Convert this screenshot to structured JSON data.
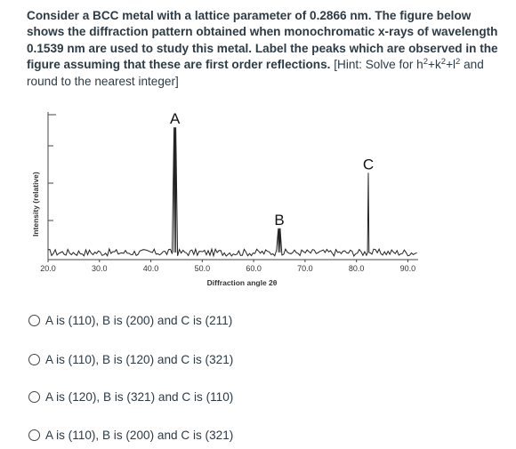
{
  "question": {
    "bold_text": "Consider a BCC metal with a lattice parameter of 0.2866 nm.  The figure below shows the diffraction pattern obtained when monochromatic x-rays of wavelength 0.1539 nm are used to study this metal.  Label the peaks which are observed in the figure assuming that these are first order reflections.",
    "hint_prefix": " [Hint:  Solve for h",
    "sup1": "2",
    "hint_k": "+k",
    "sup2": "2",
    "hint_l": "+l",
    "sup3": "2",
    "hint_suffix": " and round to the nearest integer]"
  },
  "chart_data": {
    "type": "line",
    "xlabel": "Diffraction angle 2θ",
    "ylabel": "Intensity (relative)",
    "x_ticks": [
      20,
      30,
      40,
      50,
      60,
      70,
      80,
      90
    ],
    "x_tick_labels": [
      "20.0",
      "30.0",
      "40.0",
      "50.0",
      "60.0",
      "70.0",
      "80.0",
      "90.0"
    ],
    "xlim": [
      20,
      92
    ],
    "ylim": [
      0,
      1
    ],
    "grid": false,
    "peaks": [
      {
        "label": "A",
        "x": 44.7,
        "y": 0.93
      },
      {
        "label": "B",
        "x": 65.0,
        "y": 0.22
      },
      {
        "label": "C",
        "x": 82.3,
        "y": 0.61
      }
    ],
    "baseline_level": 0.05,
    "noise_amplitude": 0.025,
    "noise_step": 0.35,
    "noise_seed": 17
  },
  "options": [
    {
      "label": "A is (110), B is (200) and C is (211)"
    },
    {
      "label": "A is (110), B is (120) and C is (321)"
    },
    {
      "label": "A is (120), B is (321) and C is (110)"
    },
    {
      "label": "A is (110), B is (200) and C is (321)"
    }
  ]
}
